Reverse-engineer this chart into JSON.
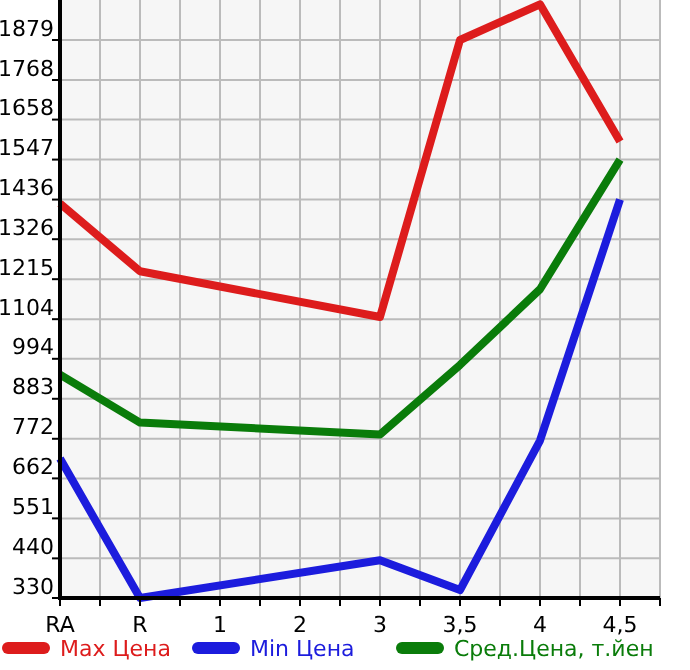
{
  "chart_data": {
    "type": "line",
    "categories": [
      "RA",
      "R",
      "1",
      "2",
      "3",
      "3,5",
      "4",
      "4,5"
    ],
    "series": [
      {
        "name": "Max Цена",
        "color": "#dd1c1c",
        "values": [
          1425,
          1237,
          null,
          null,
          1110,
          1879,
          1978,
          1597
        ]
      },
      {
        "name": "Min Цена",
        "color": "#1c1cdd",
        "values": [
          717,
          330,
          null,
          null,
          435,
          352,
          767,
          1436
        ]
      },
      {
        "name": "Сред.Цена, т.йен",
        "color": "#0a7c0a",
        "values": [
          950,
          817,
          null,
          null,
          784,
          977,
          1187,
          1547
        ]
      }
    ],
    "ylim": [
      330,
      1990
    ],
    "yticks": [
      330,
      440,
      551,
      662,
      772,
      883,
      994,
      1104,
      1215,
      1326,
      1436,
      1547,
      1658,
      1768,
      1879
    ],
    "grid": true,
    "legend": "bottom",
    "marker": "none",
    "line_style": "solid"
  }
}
